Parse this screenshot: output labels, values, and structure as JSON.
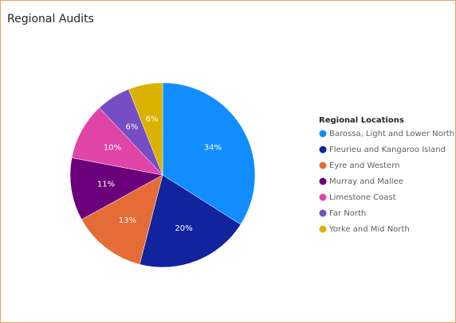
{
  "chart_data": {
    "type": "pie",
    "title": "Regional Audits",
    "legend_title": "Regional Locations",
    "legend_position": "right",
    "categories": [
      "Barossa, Light and Lower North",
      "Fleurieu and Kangaroo Island",
      "Eyre and Western",
      "Murray and Mallee",
      "Limestone Coast",
      "Far North",
      "Yorke and Mid North"
    ],
    "values": [
      34,
      20,
      13,
      11,
      10,
      6,
      6
    ],
    "value_labels": [
      "34%",
      "20%",
      "13%",
      "11%",
      "10%",
      "6%",
      "6%"
    ],
    "colors": [
      "#118DFF",
      "#12239E",
      "#E66C37",
      "#6B007B",
      "#E044A7",
      "#744EC2",
      "#D9B300"
    ]
  }
}
